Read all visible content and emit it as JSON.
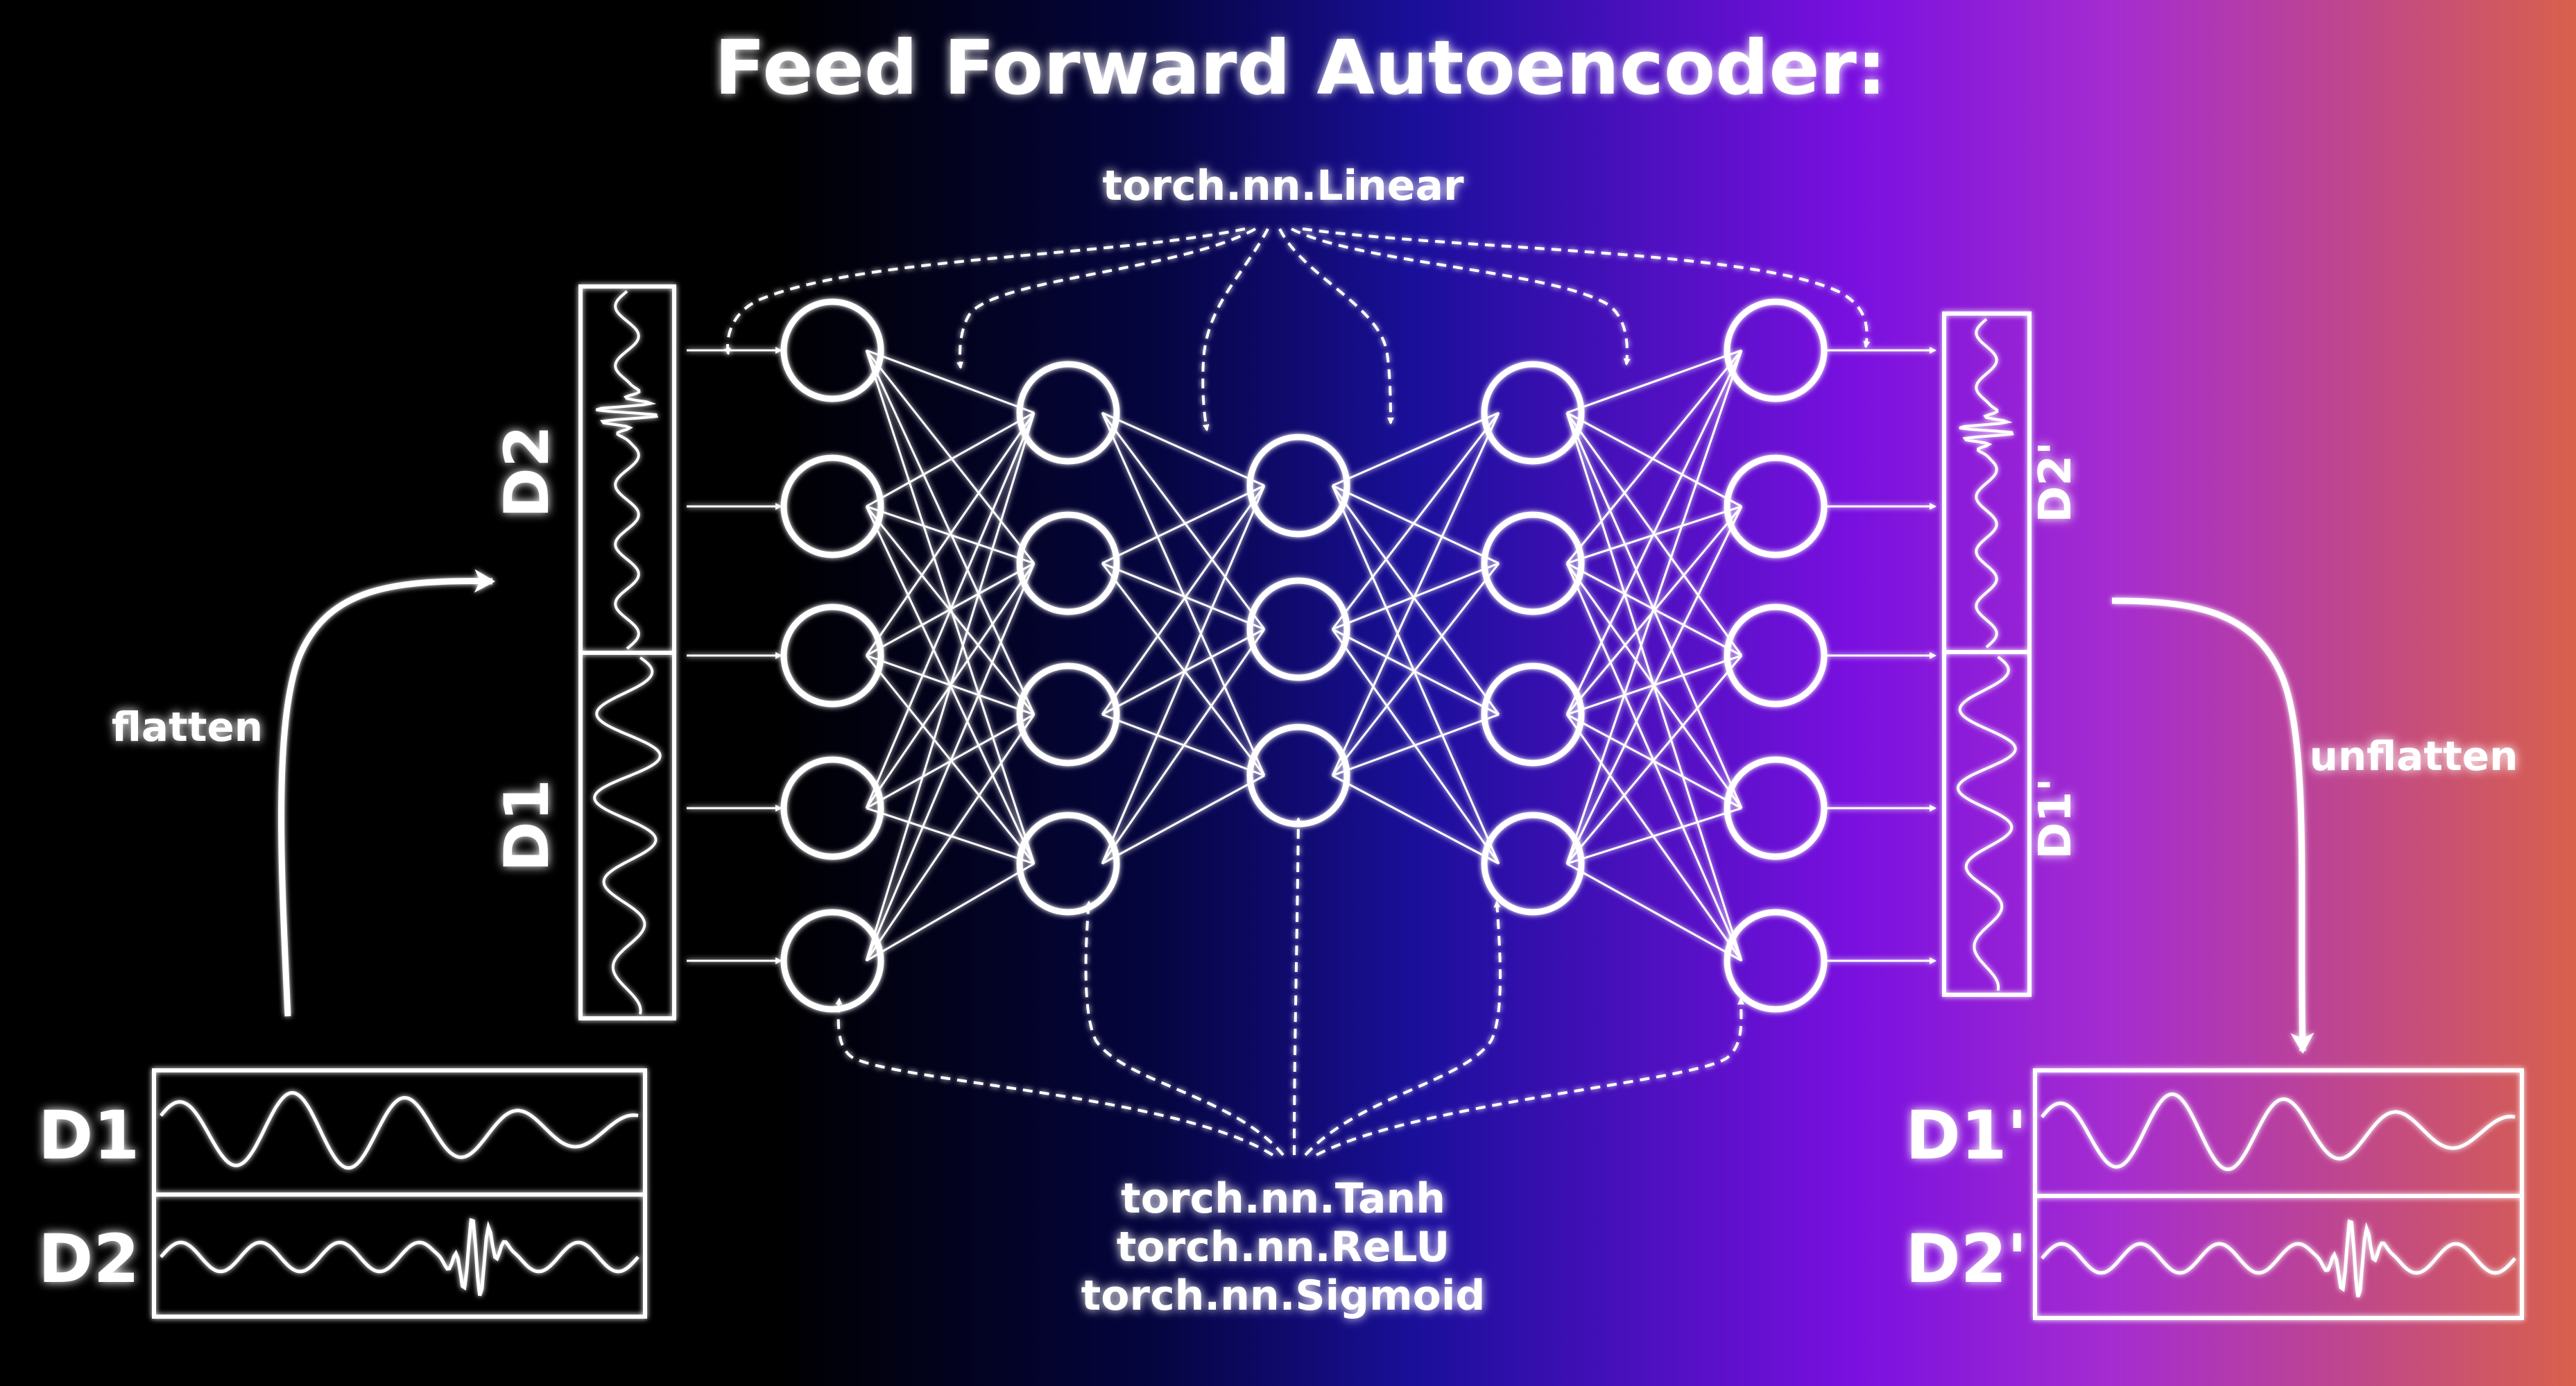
{
  "title": "Feed Forward Autoencoder:",
  "layers_label": "torch.nn.Linear",
  "activations": [
    "torch.nn.Tanh",
    "torch.nn.ReLU",
    "torch.nn.Sigmoid"
  ],
  "flatten_label": "flatten",
  "unflatten_label": "unflatten",
  "input_signals": {
    "d1": "D1",
    "d2": "D2"
  },
  "output_signals": {
    "d1": "D1'",
    "d2": "D2'"
  },
  "network": {
    "layer_sizes": [
      5,
      4,
      3,
      4,
      5
    ]
  },
  "colors": {
    "stroke": "#ffffff",
    "background_left": "#000000",
    "background_mid": "#1a0f9a",
    "background_violet": "#7a10e0",
    "background_right": "#d8604c"
  }
}
